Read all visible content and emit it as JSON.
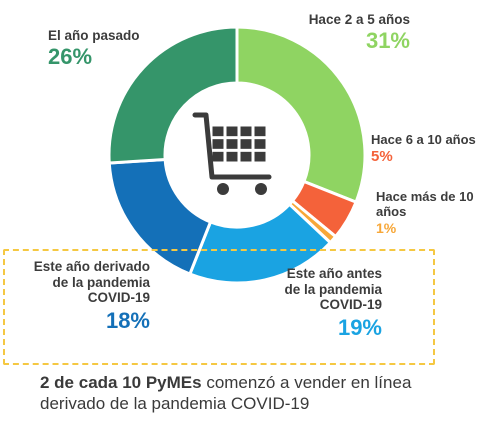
{
  "chart_data": {
    "type": "pie",
    "variant": "donut",
    "center_icon": "shopping-cart-icon",
    "slices": [
      {
        "label": "Hace 2 a 5 años",
        "value": 31,
        "value_label": "31%",
        "color": "#8fd462"
      },
      {
        "label": "Hace 6 a 10 años",
        "value": 5,
        "value_label": "5%",
        "color": "#f4623a"
      },
      {
        "label": "Hace más de 10 años",
        "value": 1,
        "value_label": "1%",
        "color": "#f7a738"
      },
      {
        "label": "Este año antes de la pandemia COVID-19",
        "value": 19,
        "value_label": "19%",
        "color": "#1aa3e2"
      },
      {
        "label": "Este año derivado de la pandemia COVID-19",
        "value": 18,
        "value_label": "18%",
        "color": "#1470b8"
      },
      {
        "label": "El año pasado",
        "value": 26,
        "value_label": "26%",
        "color": "#35956a"
      }
    ],
    "label_lines": {
      "el_ano_pasado": [
        "El año pasado"
      ],
      "hace_2_5": [
        "Hace 2 a 5 años"
      ],
      "hace_6_10": [
        "Hace 6 a 10 años"
      ],
      "hace_mas_10": [
        "Hace más de 10",
        "años"
      ],
      "antes": [
        "Este año antes",
        "de la pandemia",
        "COVID-19"
      ],
      "derivado": [
        "Este año derivado",
        "de la pandemia",
        "COVID-19"
      ]
    },
    "highlighted": "Este año derivado de la pandemia COVID-19"
  },
  "footnote": {
    "bold": "2 de cada 10 PyMEs",
    "rest": " comenzó a vender en línea",
    "line2": "derivado de la pandemia COVID-19"
  }
}
